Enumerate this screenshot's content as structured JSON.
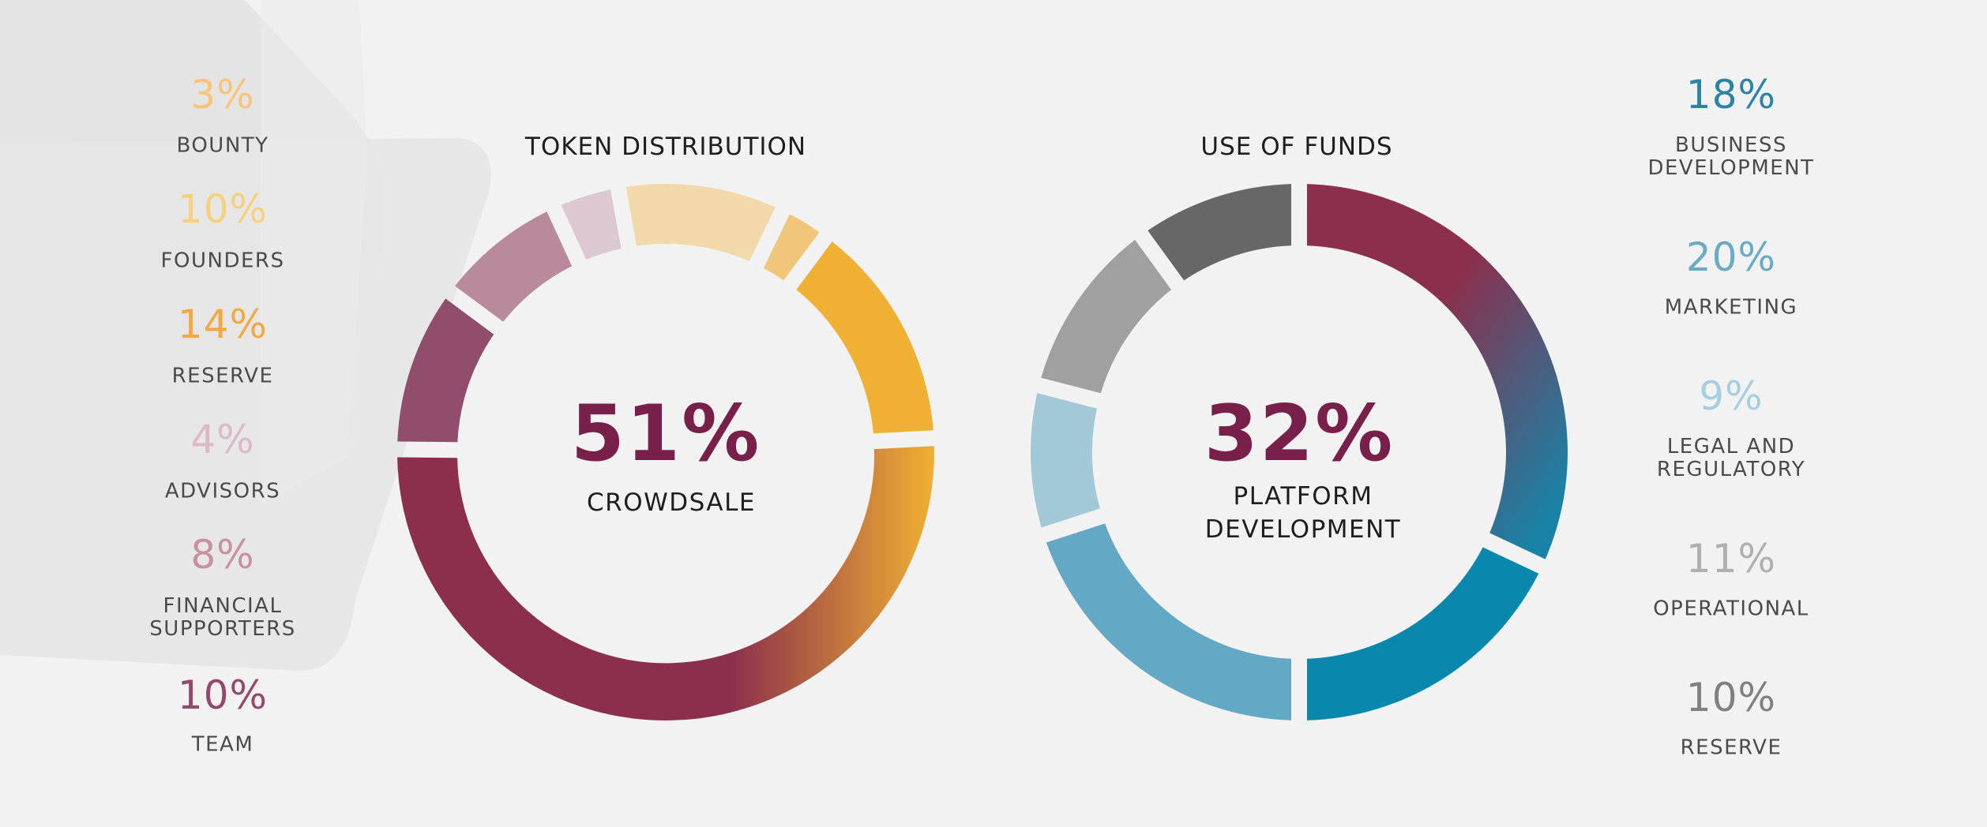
{
  "chart_data": [
    {
      "type": "pie",
      "title": "TOKEN DISTRIBUTION",
      "center_value": "51%",
      "center_label": "CROWDSALE",
      "slices": [
        {
          "label": "CROWDSALE",
          "value": 51,
          "color": "#8b2f4c",
          "color_end": "#f0b033"
        },
        {
          "label": "TEAM",
          "value": 10,
          "color": "#914d6c"
        },
        {
          "label": "FINANCIAL SUPPORTERS",
          "value": 8,
          "color": "#b88a9c"
        },
        {
          "label": "ADVISORS",
          "value": 4,
          "color": "#dbc8d0"
        },
        {
          "label": "FOUNDERS",
          "value": 10,
          "color": "#f1d9aa"
        },
        {
          "label": "BOUNTY",
          "value": 3,
          "color": "#f0c77a"
        },
        {
          "label": "RESERVE",
          "value": 14,
          "color": "#f0b033"
        }
      ],
      "legend": [
        {
          "value": "3%",
          "label": "BOUNTY",
          "color": "#f9c37a"
        },
        {
          "value": "10%",
          "label": "FOUNDERS",
          "color": "#f7d07e"
        },
        {
          "value": "14%",
          "label": "RESERVE",
          "color": "#f3a93f"
        },
        {
          "value": "4%",
          "label": "ADVISORS",
          "color": "#ddb8c6"
        },
        {
          "value": "8%",
          "label": "FINANCIAL SUPPORTERS",
          "label_lines": [
            "FINANCIAL",
            "SUPPORTERS"
          ],
          "color": "#c9909f"
        },
        {
          "value": "10%",
          "label": "TEAM",
          "color": "#93496b"
        }
      ]
    },
    {
      "type": "pie",
      "title": "USE OF FUNDS",
      "center_value": "32%",
      "center_label_lines": [
        "PLATFORM",
        "DEVELOPMENT"
      ],
      "slices": [
        {
          "label": "PLATFORM DEVELOPMENT",
          "value": 32,
          "color": "#8b2f4c",
          "color_end": "#2a7fa0"
        },
        {
          "label": "BUSINESS DEVELOPMENT",
          "value": 18,
          "color": "#0a87ad"
        },
        {
          "label": "MARKETING",
          "value": 20,
          "color": "#63a8c4"
        },
        {
          "label": "LEGAL AND REGULATORY",
          "value": 9,
          "color": "#a3c9d8"
        },
        {
          "label": "OPERATIONAL",
          "value": 11,
          "color": "#a0a0a0"
        },
        {
          "label": "RESERVE",
          "value": 10,
          "color": "#676767"
        }
      ],
      "legend": [
        {
          "value": "18%",
          "label": "BUSINESS DEVELOPMENT",
          "label_lines": [
            "BUSINESS",
            "DEVELOPMENT"
          ],
          "color": "#2a84a5"
        },
        {
          "value": "20%",
          "label": "MARKETING",
          "color": "#6aaac4"
        },
        {
          "value": "9%",
          "label": "LEGAL AND REGULATORY",
          "label_lines": [
            "LEGAL AND",
            "REGULATORY"
          ],
          "color": "#a5cfe0"
        },
        {
          "value": "11%",
          "label": "OPERATIONAL",
          "color": "#b0b0b0"
        },
        {
          "value": "10%",
          "label": "RESERVE",
          "color": "#808080"
        }
      ]
    }
  ]
}
